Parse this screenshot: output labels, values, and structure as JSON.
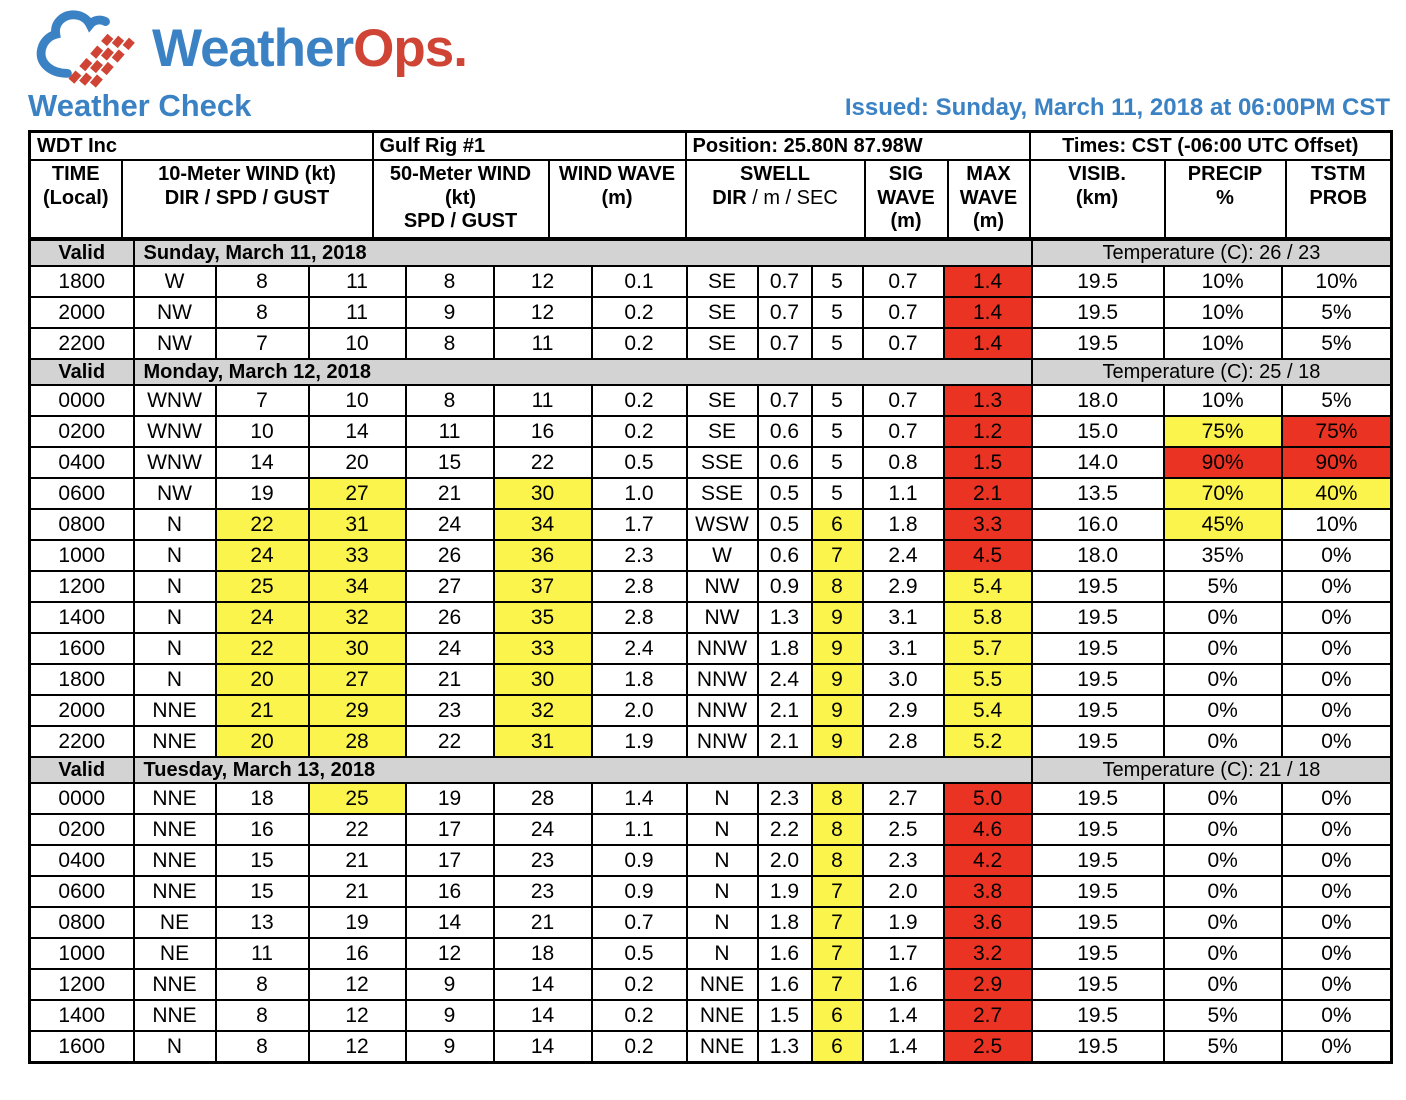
{
  "colors": {
    "accent_blue": "#3b82c4",
    "logo_red": "#cf4434",
    "highlight_yellow": "#fbf44d",
    "highlight_red": "#eb3323",
    "section_gray": "#d3d3d3"
  },
  "logo": {
    "word_blue": "Weather",
    "word_red": "Ops."
  },
  "page_title": "Weather Check",
  "issued": "Issued: Sunday, March 11, 2018 at 06:00PM CST",
  "info_row": {
    "company": "WDT Inc",
    "site": "Gulf Rig #1",
    "position": "Position: 25.80N 87.98W",
    "times": "Times: CST (-06:00 UTC Offset)"
  },
  "header": {
    "time": "TIME\n(Local)",
    "wind10": "10-Meter WIND (kt)\nDIR / SPD / GUST",
    "wind50": "50-Meter WIND\n(kt)\nSPD / GUST",
    "wind_wave": "WIND WAVE\n(m)",
    "swell_title": "SWELL",
    "swell_sub_bold": "DIR",
    "swell_sub_rest": " / m / SEC",
    "sig_wave": "SIG\nWAVE\n(m)",
    "max_wave": "MAX\nWAVE\n(m)",
    "visib": "VISIB.\n(km)",
    "precip": "PRECIP\n%",
    "tstm": "TSTM\nPROB"
  },
  "labels": {
    "valid": "Valid"
  },
  "sections": [
    {
      "date": "Sunday, March 11, 2018",
      "temperature": "Temperature (C): 26 / 23",
      "rows": [
        {
          "time": "1800",
          "values": [
            "W",
            "8",
            "11",
            "8",
            "12",
            "0.1",
            "SE",
            "0.7",
            "5",
            "0.7",
            "1.4",
            "19.5",
            "10%",
            "10%"
          ],
          "hl": {
            "10": "r"
          }
        },
        {
          "time": "2000",
          "values": [
            "NW",
            "8",
            "11",
            "9",
            "12",
            "0.2",
            "SE",
            "0.7",
            "5",
            "0.7",
            "1.4",
            "19.5",
            "10%",
            "5%"
          ],
          "hl": {
            "10": "r"
          }
        },
        {
          "time": "2200",
          "values": [
            "NW",
            "7",
            "10",
            "8",
            "11",
            "0.2",
            "SE",
            "0.7",
            "5",
            "0.7",
            "1.4",
            "19.5",
            "10%",
            "5%"
          ],
          "hl": {
            "10": "r"
          }
        }
      ]
    },
    {
      "date": "Monday, March 12, 2018",
      "temperature": "Temperature (C): 25 / 18",
      "rows": [
        {
          "time": "0000",
          "values": [
            "WNW",
            "7",
            "10",
            "8",
            "11",
            "0.2",
            "SE",
            "0.7",
            "5",
            "0.7",
            "1.3",
            "18.0",
            "10%",
            "5%"
          ],
          "hl": {
            "10": "r"
          }
        },
        {
          "time": "0200",
          "values": [
            "WNW",
            "10",
            "14",
            "11",
            "16",
            "0.2",
            "SE",
            "0.6",
            "5",
            "0.7",
            "1.2",
            "15.0",
            "75%",
            "75%"
          ],
          "hl": {
            "10": "r",
            "12": "y",
            "13": "r"
          }
        },
        {
          "time": "0400",
          "values": [
            "WNW",
            "14",
            "20",
            "15",
            "22",
            "0.5",
            "SSE",
            "0.6",
            "5",
            "0.8",
            "1.5",
            "14.0",
            "90%",
            "90%"
          ],
          "hl": {
            "10": "r",
            "12": "r",
            "13": "r"
          }
        },
        {
          "time": "0600",
          "values": [
            "NW",
            "19",
            "27",
            "21",
            "30",
            "1.0",
            "SSE",
            "0.5",
            "5",
            "1.1",
            "2.1",
            "13.5",
            "70%",
            "40%"
          ],
          "hl": {
            "2": "y",
            "4": "y",
            "10": "r",
            "12": "y",
            "13": "y"
          }
        },
        {
          "time": "0800",
          "values": [
            "N",
            "22",
            "31",
            "24",
            "34",
            "1.7",
            "WSW",
            "0.5",
            "6",
            "1.8",
            "3.3",
            "16.0",
            "45%",
            "10%"
          ],
          "hl": {
            "1": "y",
            "2": "y",
            "4": "y",
            "8": "y",
            "10": "r",
            "12": "y"
          }
        },
        {
          "time": "1000",
          "values": [
            "N",
            "24",
            "33",
            "26",
            "36",
            "2.3",
            "W",
            "0.6",
            "7",
            "2.4",
            "4.5",
            "18.0",
            "35%",
            "0%"
          ],
          "hl": {
            "1": "y",
            "2": "y",
            "4": "y",
            "8": "y",
            "10": "r"
          }
        },
        {
          "time": "1200",
          "values": [
            "N",
            "25",
            "34",
            "27",
            "37",
            "2.8",
            "NW",
            "0.9",
            "8",
            "2.9",
            "5.4",
            "19.5",
            "5%",
            "0%"
          ],
          "hl": {
            "1": "y",
            "2": "y",
            "4": "y",
            "8": "y",
            "10": "y"
          }
        },
        {
          "time": "1400",
          "values": [
            "N",
            "24",
            "32",
            "26",
            "35",
            "2.8",
            "NW",
            "1.3",
            "9",
            "3.1",
            "5.8",
            "19.5",
            "0%",
            "0%"
          ],
          "hl": {
            "1": "y",
            "2": "y",
            "4": "y",
            "8": "y",
            "10": "y"
          }
        },
        {
          "time": "1600",
          "values": [
            "N",
            "22",
            "30",
            "24",
            "33",
            "2.4",
            "NNW",
            "1.8",
            "9",
            "3.1",
            "5.7",
            "19.5",
            "0%",
            "0%"
          ],
          "hl": {
            "1": "y",
            "2": "y",
            "4": "y",
            "8": "y",
            "10": "y"
          }
        },
        {
          "time": "1800",
          "values": [
            "N",
            "20",
            "27",
            "21",
            "30",
            "1.8",
            "NNW",
            "2.4",
            "9",
            "3.0",
            "5.5",
            "19.5",
            "0%",
            "0%"
          ],
          "hl": {
            "1": "y",
            "2": "y",
            "4": "y",
            "8": "y",
            "10": "y"
          }
        },
        {
          "time": "2000",
          "values": [
            "NNE",
            "21",
            "29",
            "23",
            "32",
            "2.0",
            "NNW",
            "2.1",
            "9",
            "2.9",
            "5.4",
            "19.5",
            "0%",
            "0%"
          ],
          "hl": {
            "1": "y",
            "2": "y",
            "4": "y",
            "8": "y",
            "10": "y"
          }
        },
        {
          "time": "2200",
          "values": [
            "NNE",
            "20",
            "28",
            "22",
            "31",
            "1.9",
            "NNW",
            "2.1",
            "9",
            "2.8",
            "5.2",
            "19.5",
            "0%",
            "0%"
          ],
          "hl": {
            "1": "y",
            "2": "y",
            "4": "y",
            "8": "y",
            "10": "y"
          }
        }
      ]
    },
    {
      "date": "Tuesday, March 13, 2018",
      "temperature": "Temperature (C): 21 / 18",
      "rows": [
        {
          "time": "0000",
          "values": [
            "NNE",
            "18",
            "25",
            "19",
            "28",
            "1.4",
            "N",
            "2.3",
            "8",
            "2.7",
            "5.0",
            "19.5",
            "0%",
            "0%"
          ],
          "hl": {
            "2": "y",
            "8": "y",
            "10": "r"
          }
        },
        {
          "time": "0200",
          "values": [
            "NNE",
            "16",
            "22",
            "17",
            "24",
            "1.1",
            "N",
            "2.2",
            "8",
            "2.5",
            "4.6",
            "19.5",
            "0%",
            "0%"
          ],
          "hl": {
            "8": "y",
            "10": "r"
          }
        },
        {
          "time": "0400",
          "values": [
            "NNE",
            "15",
            "21",
            "17",
            "23",
            "0.9",
            "N",
            "2.0",
            "8",
            "2.3",
            "4.2",
            "19.5",
            "0%",
            "0%"
          ],
          "hl": {
            "8": "y",
            "10": "r"
          }
        },
        {
          "time": "0600",
          "values": [
            "NNE",
            "15",
            "21",
            "16",
            "23",
            "0.9",
            "N",
            "1.9",
            "7",
            "2.0",
            "3.8",
            "19.5",
            "0%",
            "0%"
          ],
          "hl": {
            "8": "y",
            "10": "r"
          }
        },
        {
          "time": "0800",
          "values": [
            "NE",
            "13",
            "19",
            "14",
            "21",
            "0.7",
            "N",
            "1.8",
            "7",
            "1.9",
            "3.6",
            "19.5",
            "0%",
            "0%"
          ],
          "hl": {
            "8": "y",
            "10": "r"
          }
        },
        {
          "time": "1000",
          "values": [
            "NE",
            "11",
            "16",
            "12",
            "18",
            "0.5",
            "N",
            "1.6",
            "7",
            "1.7",
            "3.2",
            "19.5",
            "0%",
            "0%"
          ],
          "hl": {
            "8": "y",
            "10": "r"
          }
        },
        {
          "time": "1200",
          "values": [
            "NNE",
            "8",
            "12",
            "9",
            "14",
            "0.2",
            "NNE",
            "1.6",
            "7",
            "1.6",
            "2.9",
            "19.5",
            "0%",
            "0%"
          ],
          "hl": {
            "8": "y",
            "10": "r"
          }
        },
        {
          "time": "1400",
          "values": [
            "NNE",
            "8",
            "12",
            "9",
            "14",
            "0.2",
            "NNE",
            "1.5",
            "6",
            "1.4",
            "2.7",
            "19.5",
            "5%",
            "0%"
          ],
          "hl": {
            "8": "y",
            "10": "r"
          }
        },
        {
          "time": "1600",
          "values": [
            "N",
            "8",
            "12",
            "9",
            "14",
            "0.2",
            "NNE",
            "1.3",
            "6",
            "1.4",
            "2.5",
            "19.5",
            "5%",
            "0%"
          ],
          "hl": {
            "8": "y",
            "10": "r"
          }
        }
      ]
    }
  ]
}
